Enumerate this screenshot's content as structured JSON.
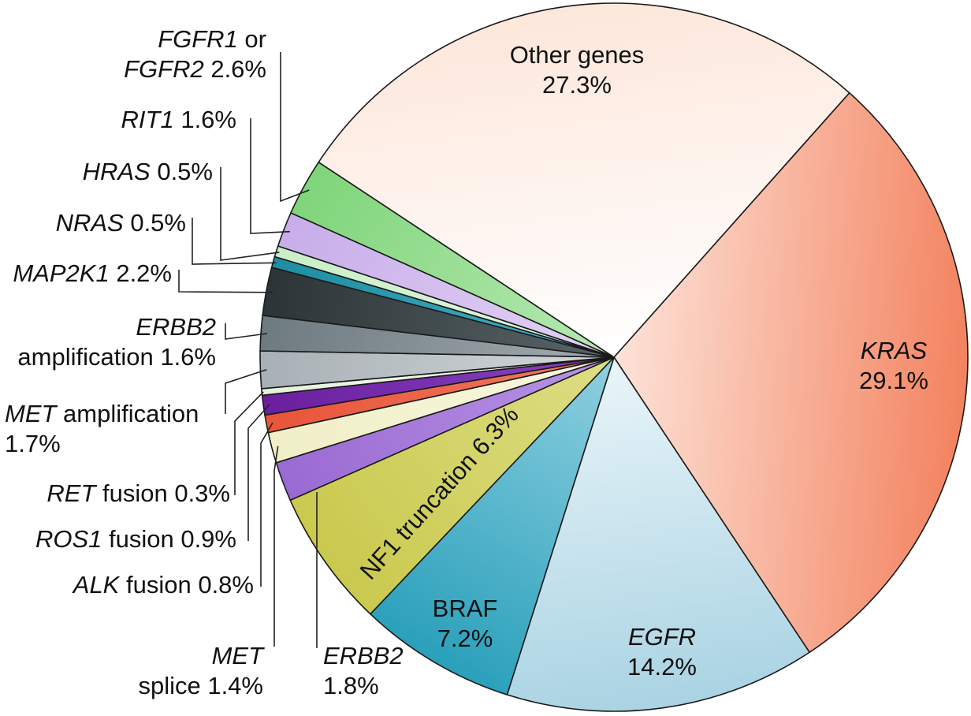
{
  "colors": {
    "outline": "#1a1a1a",
    "text": "#111111"
  },
  "chart_data": {
    "type": "pie",
    "title": "",
    "unit": "%",
    "slices": [
      {
        "key": "kras",
        "gene": "KRAS",
        "suffix": "",
        "value": 29.1,
        "value_text": "29.1%",
        "color": "#f3825f",
        "color_inner": "#fde3d8"
      },
      {
        "key": "egfr",
        "gene": "EGFR",
        "suffix": "",
        "value": 14.2,
        "value_text": "14.2%",
        "color": "#a9d3e3",
        "color_inner": "#eaf5f9"
      },
      {
        "key": "braf",
        "gene": "BRAF",
        "suffix": "",
        "value": 7.2,
        "value_text": "7.2%",
        "color": "#2aa0bb",
        "color_inner": "#8fd0e0"
      },
      {
        "key": "nf1",
        "gene": "NF1",
        "suffix": " truncation",
        "value": 6.3,
        "value_text": "6.3%",
        "color": "#c9c94e",
        "color_inner": "#dede85"
      },
      {
        "key": "erbb2",
        "gene": "ERBB2",
        "suffix": "",
        "value": 1.8,
        "value_text": "1.8%",
        "color": "#9a6ad2",
        "color_inner": "#b894e6"
      },
      {
        "key": "met_splice",
        "gene": "MET",
        "suffix": "splice",
        "value": 1.4,
        "value_text": "1.4%",
        "color": "#f0efc6",
        "color_inner": "#f8f7e1"
      },
      {
        "key": "alk",
        "gene": "ALK",
        "suffix": " fusion",
        "value": 0.8,
        "value_text": "0.8%",
        "color": "#e8553a",
        "color_inner": "#f07a60"
      },
      {
        "key": "ros1",
        "gene": "ROS1",
        "suffix": " fusion",
        "value": 0.9,
        "value_text": "0.9%",
        "color": "#6a1f9e",
        "color_inner": "#8a45c2"
      },
      {
        "key": "ret",
        "gene": "RET",
        "suffix": " fusion",
        "value": 0.3,
        "value_text": "0.3%",
        "color": "#e7f0dd",
        "color_inner": "#f3f8ee"
      },
      {
        "key": "met_amp",
        "gene": "MET",
        "suffix": " amplification",
        "value": 1.7,
        "value_text": "1.7%",
        "color": "#a7b0b5",
        "color_inner": "#d4d9dc"
      },
      {
        "key": "erbb2_amp",
        "gene": "ERBB2",
        "suffix": "amplification",
        "value": 1.6,
        "value_text": "1.6%",
        "color": "#6d7a80",
        "color_inner": "#a3acb1"
      },
      {
        "key": "map2k1",
        "gene": "MAP2K1",
        "suffix": "",
        "value": 2.2,
        "value_text": "2.2%",
        "color": "#2b3436",
        "color_inner": "#5a666a"
      },
      {
        "key": "nras",
        "gene": "NRAS",
        "suffix": "",
        "value": 0.5,
        "value_text": "0.5%",
        "color": "#1e8ea3",
        "color_inner": "#46b0c2"
      },
      {
        "key": "hras",
        "gene": "HRAS",
        "suffix": "",
        "value": 0.5,
        "value_text": "0.5%",
        "color": "#c9eec8",
        "color_inner": "#e3f7e2"
      },
      {
        "key": "rit1",
        "gene": "RIT1",
        "suffix": "",
        "value": 1.6,
        "value_text": "1.6%",
        "color": "#c8ade9",
        "color_inner": "#e2d3f5"
      },
      {
        "key": "fgfr",
        "gene": "FGFR1",
        "gene2": "FGFR2",
        "mid": " or",
        "suffix": "",
        "value": 2.6,
        "value_text": "2.6%",
        "color": "#7fd57a",
        "color_inner": "#b7e9b3"
      },
      {
        "key": "other",
        "gene": "",
        "suffix": "Other genes",
        "value": 27.3,
        "value_text": "27.3%",
        "color": "#fde7db",
        "color_inner": "#ffffff"
      }
    ]
  }
}
